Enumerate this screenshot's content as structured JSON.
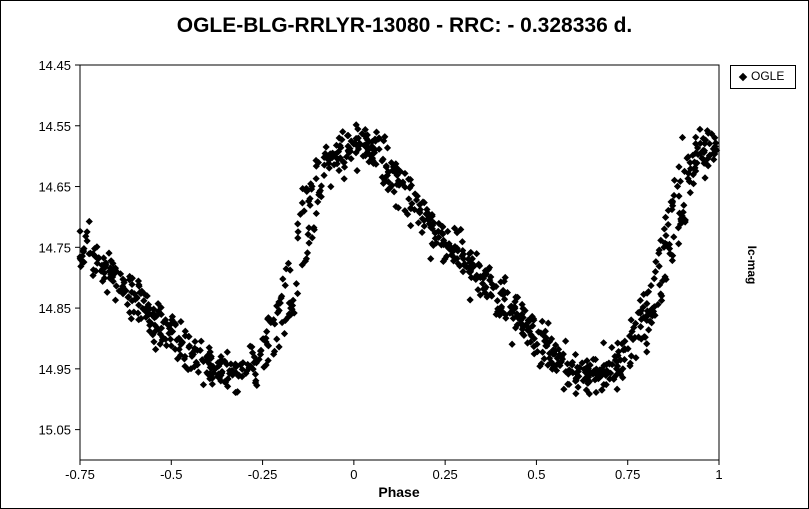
{
  "chart_data": {
    "type": "scatter",
    "title": "OGLE-BLG-RRLYR-13080 - RRC: - 0.328336 d.",
    "xlabel": "Phase",
    "ylabel": "Ic-mag",
    "xlim": [
      -0.75,
      1.0
    ],
    "ylim": [
      14.45,
      15.1
    ],
    "y_inverted": true,
    "x_ticks": [
      "-0.75",
      "-0.5",
      "-0.25",
      "0",
      "0.25",
      "0.5",
      "0.75",
      "1"
    ],
    "x_tick_values": [
      -0.75,
      -0.5,
      -0.25,
      0,
      0.25,
      0.5,
      0.75,
      1.0
    ],
    "y_ticks": [
      "14.45",
      "14.55",
      "14.65",
      "14.75",
      "14.85",
      "14.95",
      "15.05"
    ],
    "y_tick_values": [
      14.45,
      14.55,
      14.65,
      14.75,
      14.85,
      14.95,
      15.05
    ],
    "legend_position": "top-right",
    "grid": false,
    "series": [
      {
        "name": "OGLE",
        "marker": "diamond",
        "color": "#000000",
        "lightcurve_template": {
          "phase": [
            -0.75,
            -0.65,
            -0.55,
            -0.45,
            -0.4,
            -0.35,
            -0.3,
            -0.25,
            -0.2,
            -0.17,
            -0.13,
            -0.1,
            -0.05,
            0.0,
            0.02,
            0.05,
            0.1,
            0.2,
            0.3,
            0.4,
            0.5,
            0.55,
            0.6,
            0.65,
            0.7,
            0.75,
            0.8,
            0.85,
            0.9,
            0.95,
            1.0
          ],
          "mag": [
            14.76,
            14.81,
            14.87,
            14.93,
            14.955,
            14.965,
            14.95,
            14.91,
            14.84,
            14.76,
            14.67,
            14.61,
            14.59,
            14.585,
            14.575,
            14.59,
            14.64,
            14.72,
            14.78,
            14.84,
            14.91,
            14.945,
            14.96,
            14.965,
            14.95,
            14.91,
            14.84,
            14.73,
            14.63,
            14.59,
            14.58
          ]
        },
        "scatter_mag": 0.015,
        "cycle_phase_offset": 0.035,
        "point_count": 1000
      }
    ]
  }
}
